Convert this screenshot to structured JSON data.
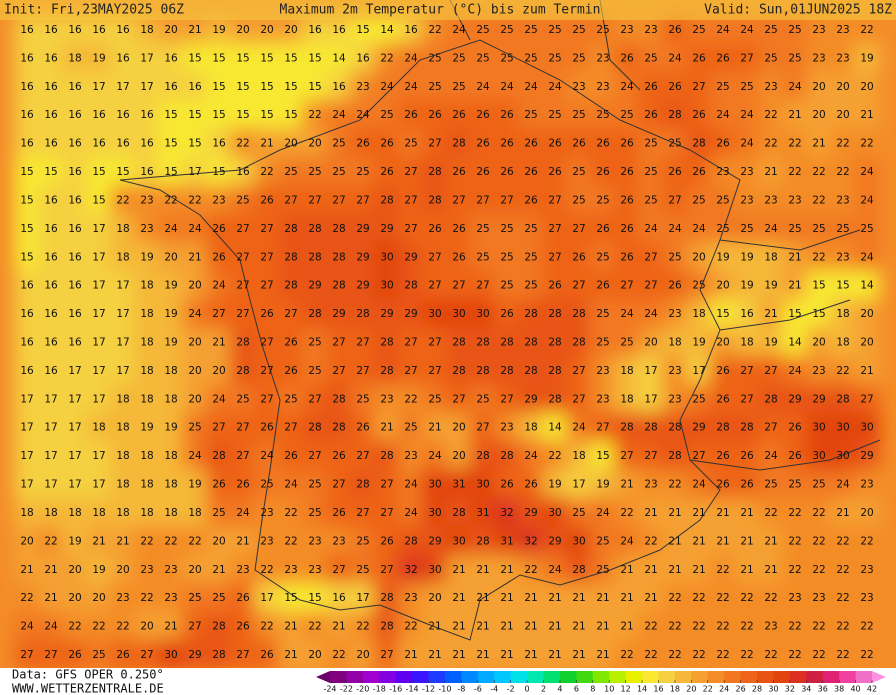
{
  "header": {
    "init": "Init: Fri,23MAY2025 06Z",
    "title": "Maximum 2m Temperatur (°C) bis zum Termin",
    "valid": "Valid: Sun,01JUN2025 18Z"
  },
  "footer": {
    "source": "Data: GFS OPER 0.250°",
    "site": "WWW.WETTERZENTRALE.DE"
  },
  "colorbar": {
    "ticks": [
      -24,
      -22,
      -20,
      -18,
      -16,
      -14,
      -12,
      -10,
      -8,
      -6,
      -4,
      -2,
      0,
      2,
      4,
      6,
      8,
      10,
      12,
      14,
      16,
      18,
      20,
      22,
      24,
      26,
      28,
      30,
      32,
      34,
      36,
      38,
      40,
      42
    ],
    "colors": [
      "#6a006a",
      "#800080",
      "#9400a8",
      "#a000d0",
      "#8400e0",
      "#6000f0",
      "#3c14ff",
      "#1e3cff",
      "#0060ff",
      "#0088ff",
      "#00aaff",
      "#00c8ff",
      "#00e0e8",
      "#00e8b0",
      "#00e070",
      "#10d030",
      "#40d810",
      "#80e800",
      "#b8f000",
      "#e8f000",
      "#f8e830",
      "#f5d040",
      "#f5b838",
      "#f5a030",
      "#f48c28",
      "#f27820",
      "#ee6418",
      "#e85414",
      "#e24410",
      "#dc3020",
      "#d02040",
      "#e02070",
      "#f040a0",
      "#f070c8",
      "#ff90e0"
    ]
  },
  "map": {
    "values": [
      [
        16,
        16,
        16,
        16,
        16,
        18,
        20,
        21,
        19,
        20,
        20,
        20,
        16,
        16,
        15,
        14,
        16,
        22,
        24,
        25,
        25,
        25,
        25,
        25,
        25,
        23,
        23,
        26,
        25,
        24,
        24,
        25,
        25,
        23,
        23,
        22
      ],
      [
        16,
        16,
        18,
        19,
        16,
        17,
        16,
        15,
        15,
        15,
        15,
        15,
        15,
        14,
        16,
        22,
        24,
        25,
        25,
        25,
        25,
        25,
        25,
        25,
        23,
        26,
        25,
        24,
        26,
        26,
        27,
        25,
        25,
        23,
        23,
        19
      ],
      [
        16,
        16,
        16,
        17,
        17,
        17,
        16,
        16,
        15,
        15,
        15,
        15,
        15,
        16,
        23,
        24,
        24,
        25,
        25,
        24,
        24,
        24,
        24,
        23,
        23,
        24,
        26,
        26,
        27,
        25,
        25,
        23,
        24,
        20,
        20,
        20
      ],
      [
        16,
        16,
        16,
        16,
        16,
        16,
        15,
        15,
        15,
        15,
        15,
        15,
        22,
        24,
        24,
        25,
        26,
        26,
        26,
        26,
        26,
        25,
        25,
        25,
        25,
        25,
        26,
        28,
        26,
        24,
        24,
        22,
        21,
        20,
        20,
        21
      ],
      [
        16,
        16,
        16,
        16,
        16,
        16,
        15,
        15,
        16,
        22,
        21,
        20,
        20,
        25,
        26,
        26,
        25,
        27,
        28,
        26,
        26,
        26,
        26,
        26,
        26,
        26,
        25,
        25,
        28,
        26,
        24,
        22,
        22,
        21,
        22,
        22
      ],
      [
        15,
        15,
        16,
        15,
        15,
        16,
        15,
        17,
        15,
        16,
        22,
        25,
        25,
        25,
        25,
        26,
        27,
        28,
        26,
        26,
        26,
        26,
        26,
        25,
        26,
        26,
        25,
        26,
        26,
        23,
        23,
        21,
        22,
        22,
        22,
        24
      ],
      [
        15,
        16,
        16,
        15,
        22,
        23,
        22,
        22,
        23,
        25,
        26,
        27,
        27,
        27,
        27,
        28,
        27,
        28,
        27,
        27,
        27,
        26,
        27,
        25,
        25,
        26,
        25,
        27,
        25,
        25,
        23,
        23,
        23,
        22,
        23,
        24
      ],
      [
        15,
        16,
        16,
        17,
        18,
        23,
        24,
        24,
        26,
        27,
        27,
        28,
        28,
        28,
        29,
        29,
        27,
        26,
        26,
        25,
        25,
        25,
        27,
        27,
        26,
        26,
        24,
        24,
        24,
        25,
        25,
        24,
        25,
        25,
        25,
        25
      ],
      [
        15,
        16,
        16,
        17,
        18,
        19,
        20,
        21,
        26,
        27,
        27,
        28,
        28,
        28,
        29,
        30,
        29,
        27,
        26,
        25,
        25,
        25,
        27,
        26,
        25,
        26,
        27,
        25,
        20,
        19,
        19,
        18,
        21,
        22,
        23,
        24
      ],
      [
        16,
        16,
        16,
        17,
        17,
        18,
        19,
        20,
        24,
        27,
        27,
        28,
        29,
        28,
        29,
        30,
        28,
        27,
        27,
        27,
        25,
        25,
        26,
        27,
        26,
        27,
        27,
        26,
        25,
        20,
        19,
        19,
        21,
        15,
        15,
        14
      ],
      [
        16,
        16,
        16,
        17,
        17,
        18,
        19,
        24,
        27,
        27,
        26,
        27,
        28,
        29,
        28,
        29,
        29,
        30,
        30,
        30,
        26,
        28,
        28,
        28,
        25,
        24,
        24,
        23,
        18,
        15,
        16,
        21,
        15,
        15,
        18,
        20
      ],
      [
        16,
        16,
        16,
        17,
        17,
        18,
        19,
        20,
        21,
        28,
        27,
        26,
        25,
        27,
        27,
        28,
        27,
        27,
        28,
        28,
        28,
        28,
        28,
        28,
        25,
        25,
        20,
        18,
        19,
        20,
        18,
        19,
        14,
        20,
        18,
        20
      ],
      [
        16,
        16,
        17,
        17,
        17,
        18,
        18,
        20,
        20,
        28,
        27,
        26,
        25,
        27,
        27,
        28,
        27,
        27,
        28,
        28,
        28,
        28,
        28,
        27,
        23,
        18,
        17,
        23,
        17,
        26,
        27,
        27,
        24,
        23,
        22,
        21
      ],
      [
        17,
        17,
        17,
        17,
        18,
        18,
        18,
        20,
        24,
        25,
        27,
        25,
        27,
        28,
        25,
        23,
        22,
        25,
        27,
        25,
        27,
        29,
        28,
        27,
        23,
        18,
        17,
        23,
        25,
        26,
        27,
        28,
        29,
        29,
        28,
        27
      ],
      [
        17,
        17,
        17,
        18,
        18,
        19,
        19,
        25,
        27,
        27,
        26,
        27,
        28,
        28,
        26,
        21,
        25,
        21,
        20,
        27,
        23,
        18,
        14,
        24,
        27,
        28,
        28,
        28,
        29,
        28,
        28,
        27,
        26,
        30,
        30,
        30
      ],
      [
        17,
        17,
        17,
        17,
        18,
        18,
        18,
        24,
        28,
        27,
        24,
        26,
        27,
        26,
        27,
        28,
        23,
        24,
        20,
        28,
        28,
        24,
        22,
        18,
        15,
        27,
        27,
        28,
        27,
        26,
        26,
        24,
        26,
        30,
        30,
        29
      ],
      [
        17,
        17,
        17,
        17,
        18,
        18,
        18,
        19,
        26,
        26,
        25,
        24,
        25,
        27,
        28,
        27,
        24,
        30,
        31,
        30,
        26,
        26,
        19,
        17,
        19,
        21,
        23,
        22,
        24,
        26,
        26,
        25,
        25,
        25,
        24,
        23
      ],
      [
        18,
        18,
        18,
        18,
        18,
        18,
        18,
        18,
        25,
        24,
        23,
        22,
        25,
        26,
        27,
        27,
        24,
        30,
        28,
        31,
        32,
        29,
        30,
        25,
        24,
        22,
        21,
        21,
        21,
        21,
        21,
        22,
        22,
        22,
        21,
        20
      ],
      [
        20,
        22,
        19,
        21,
        21,
        22,
        22,
        22,
        20,
        21,
        23,
        22,
        23,
        23,
        25,
        26,
        28,
        29,
        30,
        28,
        31,
        32,
        29,
        30,
        25,
        24,
        22,
        21,
        21,
        21,
        21,
        21,
        22,
        22,
        22,
        22
      ],
      [
        21,
        21,
        20,
        19,
        20,
        23,
        23,
        20,
        21,
        23,
        22,
        23,
        23,
        27,
        25,
        27,
        32,
        30,
        21,
        21,
        21,
        22,
        24,
        28,
        25,
        21,
        21,
        21,
        21,
        22,
        21,
        21,
        22,
        22,
        22,
        23
      ],
      [
        22,
        21,
        20,
        20,
        23,
        22,
        23,
        25,
        25,
        26,
        17,
        15,
        15,
        16,
        17,
        28,
        23,
        20,
        21,
        21,
        21,
        21,
        21,
        21,
        21,
        21,
        21,
        22,
        22,
        22,
        22,
        22,
        23,
        23,
        22,
        23
      ],
      [
        24,
        24,
        22,
        22,
        22,
        20,
        21,
        27,
        28,
        26,
        22,
        21,
        22,
        21,
        22,
        28,
        22,
        21,
        21,
        21,
        21,
        21,
        21,
        21,
        21,
        21,
        22,
        22,
        22,
        22,
        22,
        23,
        22,
        22,
        22,
        22
      ],
      [
        27,
        27,
        26,
        25,
        26,
        27,
        30,
        29,
        28,
        27,
        26,
        21,
        20,
        22,
        20,
        27,
        21,
        21,
        21,
        21,
        21,
        21,
        21,
        21,
        21,
        22,
        22,
        22,
        22,
        22,
        22,
        22,
        22,
        22,
        22,
        22
      ]
    ]
  }
}
